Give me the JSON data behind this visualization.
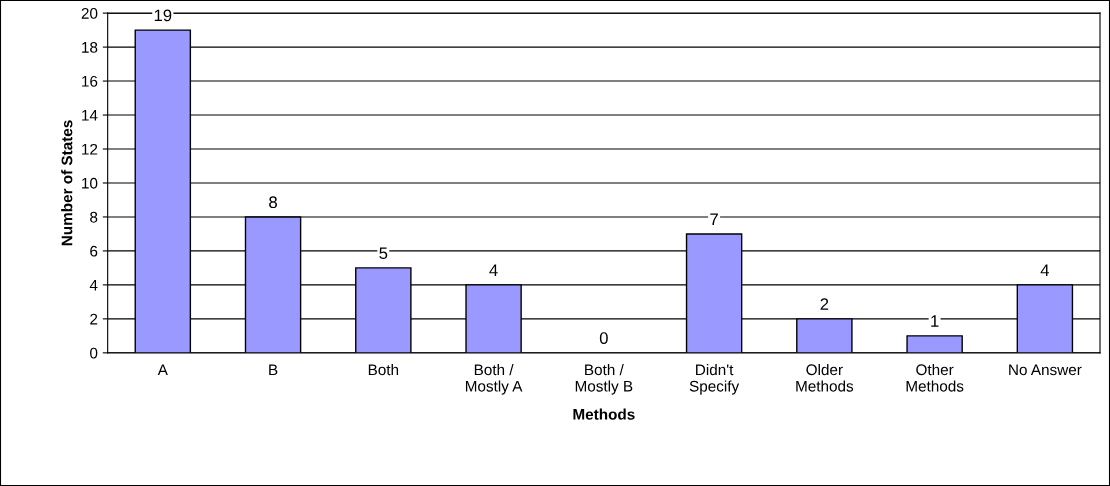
{
  "chart_data": {
    "type": "bar",
    "xlabel": "Methods",
    "ylabel": "Number of States",
    "categories": [
      "A",
      "B",
      "Both",
      "Both /\nMostly A",
      "Both /\nMostly B",
      "Didn't\nSpecify",
      "Older\nMethods",
      "Other\nMethods",
      "No Answer"
    ],
    "values": [
      19,
      8,
      5,
      4,
      0,
      7,
      2,
      1,
      4
    ],
    "color": "#9999ff",
    "ylim": [
      0,
      20
    ],
    "yticks": [
      0,
      2,
      4,
      6,
      8,
      10,
      12,
      14,
      16,
      18,
      20
    ],
    "grid": "y",
    "data_labels": true
  }
}
